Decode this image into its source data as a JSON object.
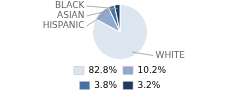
{
  "chart_data": {
    "type": "pie",
    "categories": [
      "WHITE",
      "HISPANIC",
      "ASIAN",
      "BLACK"
    ],
    "values": [
      82.8,
      10.2,
      3.8,
      3.2
    ],
    "value_labels": [
      "82.8%",
      "10.2%",
      "3.8%",
      "3.2%"
    ],
    "colors": [
      "#dce6f1",
      "#8faacc",
      "#4472a4",
      "#1f3864"
    ],
    "legend": "bottom"
  }
}
